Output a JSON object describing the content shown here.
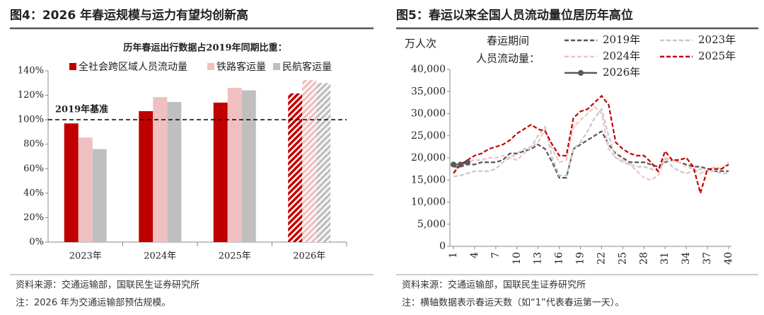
{
  "chart_data": [
    {
      "type": "bar",
      "title": "图4：2026 年春运规模与运力有望均创新高",
      "subtitle": "历年春运出行数据占2019年同期比重：",
      "categories": [
        "2023年",
        "2024年",
        "2025年",
        "2026年"
      ],
      "hatched": [
        false,
        false,
        false,
        true
      ],
      "series": [
        {
          "name": "全社会跨区域人员流动量",
          "color": "#c00000",
          "values": [
            97,
            107,
            114,
            121.5
          ]
        },
        {
          "name": "铁路客运量",
          "color": "#f0c0c0",
          "values": [
            85.5,
            118.5,
            126,
            132.5
          ]
        },
        {
          "name": "民航客运量",
          "color": "#bfbfbf",
          "values": [
            76,
            114.5,
            124,
            130
          ]
        }
      ],
      "reference_line": {
        "value": 100,
        "label": "2019年基准"
      },
      "ylim": [
        0,
        140
      ],
      "yticks": [
        {
          "value": 0,
          "label": "0%"
        },
        {
          "value": 20,
          "label": "20%"
        },
        {
          "value": 40,
          "label": "40%"
        },
        {
          "value": 60,
          "label": "60%"
        },
        {
          "value": 80,
          "label": "80%"
        },
        {
          "value": 100,
          "label": "100%"
        },
        {
          "value": 120,
          "label": "120%"
        },
        {
          "value": 140,
          "label": "140%"
        }
      ],
      "grid": false,
      "source": "资料来源：交通运输部，国联民生证券研究所",
      "note": "注：2026 年为交通运输部预估规模。"
    },
    {
      "type": "line",
      "title": "图5：春运以来全国人员流动量位居历年高位",
      "ylabel": "万人次",
      "legend_title": [
        "春运期间",
        "人员流动量："
      ],
      "x": [
        1,
        2,
        3,
        4,
        5,
        6,
        7,
        8,
        9,
        10,
        11,
        12,
        13,
        14,
        15,
        16,
        17,
        18,
        19,
        20,
        21,
        22,
        23,
        24,
        25,
        26,
        27,
        28,
        29,
        30,
        31,
        32,
        33,
        34,
        35,
        36,
        37,
        38,
        39,
        40
      ],
      "series": [
        {
          "name": "2019年",
          "color": "#555555",
          "dash": true,
          "marker": false,
          "values": [
            18000,
            18000,
            18500,
            18500,
            19000,
            19000,
            19000,
            19500,
            21000,
            21000,
            21500,
            22000,
            23000,
            22000,
            19000,
            15500,
            15500,
            22000,
            23000,
            24000,
            25000,
            26000,
            23000,
            21000,
            20000,
            19000,
            19000,
            19000,
            18500,
            18000,
            19000,
            19500,
            19000,
            18500,
            18000,
            18000,
            17500,
            17000,
            17000,
            17000
          ]
        },
        {
          "name": "2023年",
          "color": "#c8c8c8",
          "dash": true,
          "marker": false,
          "values": [
            15800,
            16000,
            16500,
            17000,
            17000,
            17000,
            17500,
            19000,
            20000,
            21000,
            22000,
            22500,
            25000,
            27000,
            20000,
            16000,
            16000,
            22000,
            23500,
            26000,
            29000,
            31000,
            25000,
            20000,
            19000,
            18500,
            18000,
            18000,
            17500,
            17000,
            20000,
            18000,
            17000,
            16500,
            17000,
            17500,
            17000,
            17000,
            16500,
            16500
          ]
        },
        {
          "name": "2024年",
          "color": "#f4c2c2",
          "dash": true,
          "marker": false,
          "values": [
            17000,
            18000,
            19000,
            19500,
            19500,
            20000,
            20000,
            20500,
            20000,
            19500,
            21000,
            22500,
            23500,
            26500,
            22000,
            19000,
            19500,
            27000,
            28500,
            30000,
            31500,
            30000,
            22000,
            20000,
            19500,
            18500,
            17000,
            15500,
            15000,
            16000,
            20000,
            19500,
            19000,
            18000,
            17500,
            16500,
            17000,
            18000,
            17500,
            19000
          ]
        },
        {
          "name": "2025年",
          "color": "#c00000",
          "dash": true,
          "marker": false,
          "values": [
            16500,
            18500,
            19500,
            20500,
            21000,
            22000,
            22500,
            23000,
            24000,
            25500,
            26500,
            27500,
            26500,
            26000,
            23000,
            20500,
            20500,
            29000,
            30500,
            31000,
            32500,
            34000,
            32000,
            23500,
            22000,
            21000,
            20500,
            20500,
            19000,
            17000,
            21500,
            19500,
            19500,
            20000,
            18000,
            12000,
            17500,
            17500,
            17500,
            18500
          ]
        },
        {
          "name": "2026年",
          "color": "#595959",
          "dash": false,
          "marker": true,
          "values": [
            18500,
            18500,
            19000,
            null,
            null,
            null,
            null,
            null,
            null,
            null,
            null,
            null,
            null,
            null,
            null,
            null,
            null,
            null,
            null,
            null,
            null,
            null,
            null,
            null,
            null,
            null,
            null,
            null,
            null,
            null,
            null,
            null,
            null,
            null,
            null,
            null,
            null,
            null,
            null,
            null
          ]
        }
      ],
      "xlim": [
        1,
        40
      ],
      "xticks": [
        1,
        4,
        7,
        10,
        13,
        16,
        19,
        22,
        25,
        28,
        31,
        34,
        37,
        40
      ],
      "ylim": [
        0,
        40000
      ],
      "yticks": [
        0,
        {
          "value": 5000,
          "label": "5,000"
        },
        {
          "value": 10000,
          "label": "10,000"
        },
        {
          "value": 15000,
          "label": "15,000"
        },
        {
          "value": 20000,
          "label": "20,000"
        },
        {
          "value": 25000,
          "label": "25,000"
        },
        {
          "value": 30000,
          "label": "30,000"
        },
        {
          "value": 35000,
          "label": "35,000"
        },
        {
          "value": 40000,
          "label": "40,000"
        }
      ],
      "grid": false,
      "source": "资料来源：交通运输部，国联民生证券研究所",
      "note": "注：横轴数据表示春运天数（如“1”代表春运第一天）。"
    }
  ]
}
